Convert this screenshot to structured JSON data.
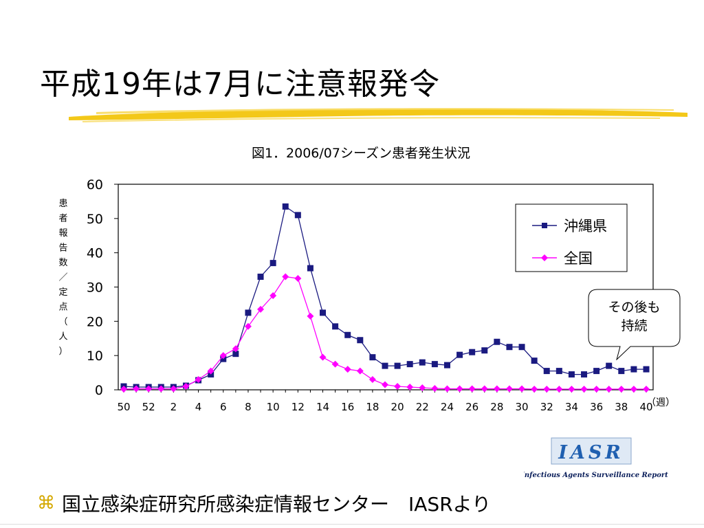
{
  "slide": {
    "title": "平成19年は7月に注意報発令",
    "footer_text": "国立感染症研究所感染症情報センター　IASRより",
    "bullet_icon": "command-symbol-icon",
    "callout_line1": "その後も",
    "callout_line2": "持続",
    "logo_text": "IASR",
    "logo_caption": "Infectious Agents Surveillance Report",
    "colors": {
      "underline": "#f2c200",
      "logo_blue": "#1f5fb0",
      "bullet": "#d4a800"
    }
  },
  "chart_data": {
    "type": "line",
    "title": "図1．2006/07シーズン患者発生状況",
    "ylabel": "患者報告数／定点（人）",
    "xlabel": "（週）",
    "ylim": [
      0,
      60
    ],
    "yticks": [
      "0",
      "10",
      "20",
      "30",
      "40",
      "50",
      "60"
    ],
    "x": [
      50,
      51,
      52,
      1,
      2,
      3,
      4,
      5,
      6,
      7,
      8,
      9,
      10,
      11,
      12,
      13,
      14,
      15,
      16,
      17,
      18,
      19,
      20,
      21,
      22,
      23,
      24,
      25,
      26,
      27,
      28,
      29,
      30,
      31,
      32,
      33,
      34,
      35,
      36,
      37,
      38,
      39,
      40
    ],
    "xtick_labels": [
      "50",
      "52",
      "2",
      "4",
      "6",
      "8",
      "10",
      "12",
      "14",
      "16",
      "18",
      "20",
      "22",
      "24",
      "26",
      "28",
      "30",
      "32",
      "34",
      "36",
      "38",
      "40"
    ],
    "grid": false,
    "legend_position": "top-right",
    "series": [
      {
        "name": "沖縄県",
        "color": "#1a1a80",
        "marker": "square",
        "values": [
          1.0,
          0.8,
          0.8,
          0.8,
          0.8,
          1.2,
          2.8,
          4.5,
          9.0,
          10.5,
          22.5,
          33.0,
          37.0,
          53.5,
          51.0,
          35.5,
          22.5,
          18.5,
          16.0,
          14.5,
          9.5,
          7.0,
          7.0,
          7.5,
          8.0,
          7.5,
          7.2,
          10.2,
          11.0,
          11.5,
          14.0,
          12.5,
          12.5,
          8.5,
          5.5,
          5.5,
          4.5,
          4.5,
          5.5,
          7.0,
          5.5,
          6.0,
          6.0
        ]
      },
      {
        "name": "全国",
        "color": "#ff00ff",
        "marker": "diamond",
        "values": [
          0.2,
          0.3,
          0.3,
          0.3,
          0.3,
          1.0,
          3.0,
          5.5,
          10.0,
          12.0,
          18.5,
          23.5,
          27.5,
          33.0,
          32.5,
          21.5,
          9.5,
          7.5,
          6.0,
          5.5,
          3.0,
          1.5,
          1.0,
          0.8,
          0.6,
          0.4,
          0.3,
          0.3,
          0.3,
          0.3,
          0.3,
          0.3,
          0.3,
          0.2,
          0.2,
          0.2,
          0.2,
          0.2,
          0.2,
          0.2,
          0.2,
          0.2,
          0.2
        ]
      }
    ]
  }
}
